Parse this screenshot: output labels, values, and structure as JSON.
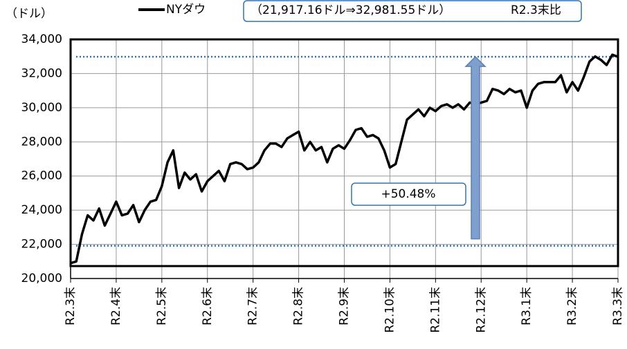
{
  "chart_data": {
    "type": "line",
    "unit_label": "（ドル）",
    "legend_note": "（21,917.16ドル⇒32,981.55ドル）",
    "legend_note2": "R2.3末比",
    "annotation": "+50.48%",
    "categories": [
      "R2.3末",
      null,
      null,
      null,
      null,
      null,
      null,
      null,
      "R2.4末",
      null,
      null,
      null,
      null,
      null,
      null,
      null,
      "R2.5末",
      null,
      null,
      null,
      null,
      null,
      null,
      null,
      "R2.6末",
      null,
      null,
      null,
      null,
      null,
      null,
      null,
      "R2.7末",
      null,
      null,
      null,
      null,
      null,
      null,
      null,
      "R2.8末",
      null,
      null,
      null,
      null,
      null,
      null,
      null,
      "R2.9末",
      null,
      null,
      null,
      null,
      null,
      null,
      null,
      "R2.10末",
      null,
      null,
      null,
      null,
      null,
      null,
      null,
      "R2.11末",
      null,
      null,
      null,
      null,
      null,
      null,
      null,
      "R2.12末",
      null,
      null,
      null,
      null,
      null,
      null,
      null,
      "R3.1末",
      null,
      null,
      null,
      null,
      null,
      null,
      null,
      "R3.2末",
      null,
      null,
      null,
      null,
      null,
      null,
      null,
      "R3.3末"
    ],
    "series": [
      {
        "name": "NYダウ",
        "color": "#000000",
        "values": [
          20900,
          21000,
          22600,
          23700,
          23400,
          24100,
          23100,
          23800,
          24500,
          23700,
          23800,
          24300,
          23300,
          24000,
          24500,
          24600,
          25400,
          26800,
          27500,
          25300,
          26200,
          25800,
          26100,
          25100,
          25700,
          26000,
          26300,
          25700,
          26700,
          26800,
          26700,
          26400,
          26500,
          26800,
          27500,
          27900,
          27900,
          27700,
          28200,
          28400,
          28600,
          27500,
          28000,
          27500,
          27700,
          26800,
          27600,
          27800,
          27600,
          28100,
          28700,
          28800,
          28300,
          28400,
          28200,
          27500,
          26500,
          26700,
          28000,
          29300,
          29600,
          29900,
          29500,
          30000,
          29800,
          30100,
          30200,
          30000,
          30200,
          29900,
          30300,
          30200,
          30300,
          30400,
          31100,
          31000,
          30800,
          31100,
          30900,
          31000,
          30000,
          31000,
          31400,
          31500,
          31500,
          31500,
          31900,
          30900,
          31500,
          31000,
          31800,
          32700,
          33000,
          32800,
          32500,
          33100,
          32980
        ]
      }
    ],
    "reference_lines": [
      {
        "value": 21917.16,
        "color": "#2e75b6"
      },
      {
        "value": 32981.55,
        "color": "#2e75b6"
      }
    ],
    "arrow_color": "#7f9fcf",
    "ylim": [
      20000,
      34000
    ],
    "yticks": [
      {
        "value": 20000,
        "label": "20,000"
      },
      {
        "value": 22000,
        "label": "22,000"
      },
      {
        "value": 24000,
        "label": "24,000"
      },
      {
        "value": 26000,
        "label": "26,000"
      },
      {
        "value": 28000,
        "label": "28,000"
      },
      {
        "value": 30000,
        "label": "30,000"
      },
      {
        "value": 32000,
        "label": "32,000"
      },
      {
        "value": 34000,
        "label": "34,000"
      }
    ],
    "grid": true
  }
}
